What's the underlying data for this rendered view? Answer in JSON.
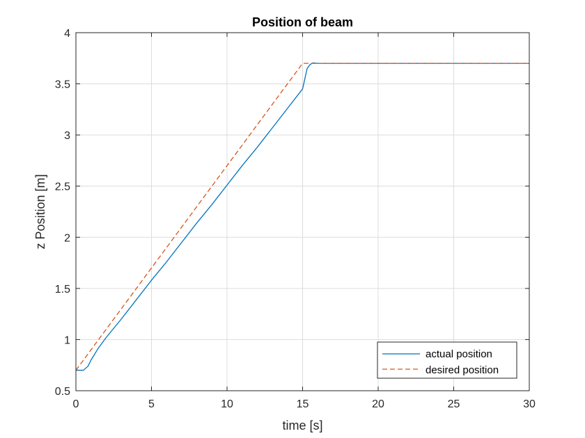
{
  "chart_data": {
    "type": "line",
    "title": "Position of beam",
    "xlabel": "time [s]",
    "ylabel": "z Position [m]",
    "xlim": [
      0,
      30
    ],
    "ylim": [
      0.5,
      4
    ],
    "xticks": [
      0,
      5,
      10,
      15,
      20,
      25,
      30
    ],
    "xtick_labels": [
      "0",
      "5",
      "10",
      "15",
      "20",
      "25",
      "30"
    ],
    "yticks": [
      0.5,
      1,
      1.5,
      2,
      2.5,
      3,
      3.5,
      4
    ],
    "ytick_labels": [
      "0.5",
      "1",
      "1.5",
      "2",
      "2.5",
      "3",
      "3.5",
      "4"
    ],
    "grid": true,
    "legend_position": "bottom-right",
    "series": [
      {
        "name": "actual position",
        "color": "#0072BD",
        "style": "solid",
        "x": [
          0,
          0.2,
          0.5,
          0.8,
          1.0,
          1.5,
          2,
          3,
          4,
          5,
          6,
          7,
          8,
          9,
          10,
          11,
          12,
          13,
          14,
          15,
          15.3,
          15.5,
          15.7,
          16,
          17,
          20,
          25,
          30
        ],
        "y": [
          0.7,
          0.7,
          0.7,
          0.74,
          0.8,
          0.92,
          1.02,
          1.2,
          1.39,
          1.58,
          1.76,
          1.95,
          2.14,
          2.32,
          2.51,
          2.7,
          2.88,
          3.07,
          3.26,
          3.45,
          3.65,
          3.69,
          3.705,
          3.7,
          3.7,
          3.7,
          3.7,
          3.7
        ]
      },
      {
        "name": "desired position",
        "color": "#D95319",
        "style": "dashed",
        "x": [
          0,
          5,
          10,
          15,
          15.1,
          20,
          25,
          30
        ],
        "y": [
          0.7,
          1.7,
          2.7,
          3.7,
          3.7,
          3.7,
          3.7,
          3.7
        ]
      }
    ]
  },
  "colors": {
    "axis": "#262626",
    "grid": "#dcdcdc",
    "plot_background": "#ffffff"
  }
}
